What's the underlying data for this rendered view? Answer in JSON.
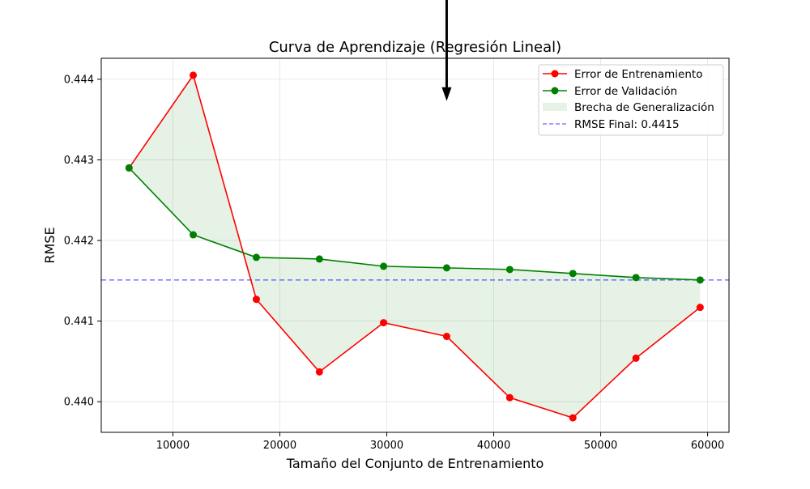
{
  "chart_data": {
    "type": "line",
    "title": "Curva de Aprendizaje (Regresión Lineal)",
    "xlabel": "Tamaño del Conjunto de Entrenamiento",
    "ylabel": "RMSE",
    "xlim": [
      3300,
      62000
    ],
    "ylim": [
      0.43962,
      0.44426
    ],
    "xticks": [
      10000,
      20000,
      30000,
      40000,
      50000,
      60000
    ],
    "xtick_labels": [
      "10000",
      "20000",
      "30000",
      "40000",
      "50000",
      "60000"
    ],
    "yticks": [
      0.44,
      0.441,
      0.442,
      0.443,
      0.444
    ],
    "ytick_labels": [
      "0.440",
      "0.441",
      "0.442",
      "0.443",
      "0.444"
    ],
    "grid": true,
    "legend_position": "top-right",
    "x": [
      5900,
      11900,
      17800,
      23700,
      29700,
      35600,
      41500,
      47400,
      53300,
      59300
    ],
    "series": [
      {
        "name": "Error de Entrenamiento",
        "color": "#ff0000",
        "marker": "circle",
        "values": [
          0.4429,
          0.44405,
          0.44127,
          0.44037,
          0.44098,
          0.44081,
          0.44005,
          0.4398,
          0.44054,
          0.44117
        ]
      },
      {
        "name": "Error de Validación",
        "color": "#008000",
        "marker": "circle",
        "values": [
          0.4429,
          0.44207,
          0.44179,
          0.44177,
          0.44168,
          0.44166,
          0.44164,
          0.44159,
          0.44154,
          0.44151
        ]
      }
    ],
    "fill_between": {
      "name": "Brecha de Generalización",
      "color": "#008000",
      "opacity": 0.1
    },
    "hline": {
      "name": "RMSE Final: 0.4415",
      "value": 0.44151,
      "color": "#0000ff"
    },
    "annotation": {
      "type": "arrow",
      "color": "#000000",
      "x_data": 35600,
      "y_tip_data": 0.44373
    }
  }
}
